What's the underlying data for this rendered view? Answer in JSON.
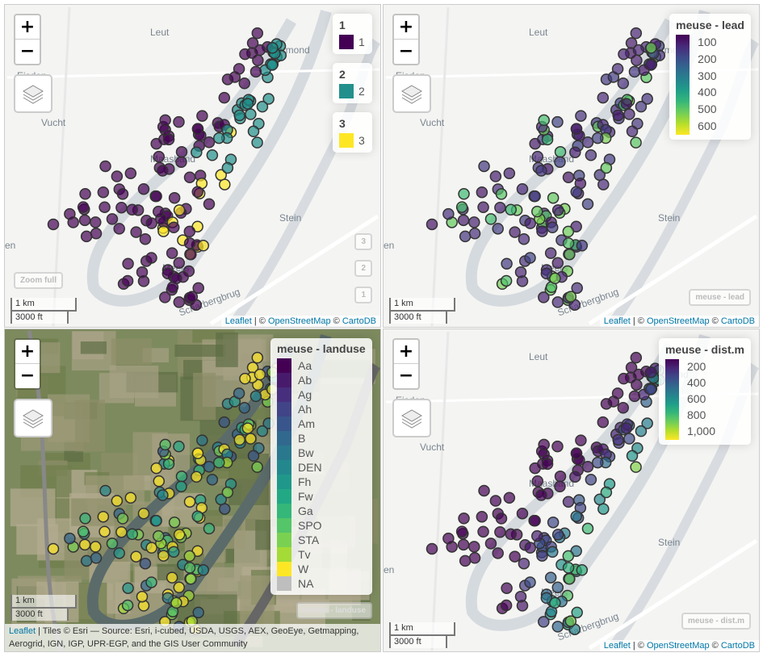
{
  "controls": {
    "zoom_in": "+",
    "zoom_out": "−",
    "layers_icon": "layers-icon"
  },
  "place_labels": [
    "Leut",
    "Urmond",
    "Eisden",
    "Vucht",
    "Maasband",
    "Stein",
    "Meers",
    "Scharbergbrug",
    "en"
  ],
  "scale": {
    "km": "1 km",
    "ft": "3000 ft"
  },
  "attribution_carto": {
    "leaflet": "Leaflet",
    "sep": " | © ",
    "osm": "OpenStreetMap",
    "sep2": " © ",
    "carto": "CartoDB"
  },
  "attribution_esri": {
    "leaflet": "Leaflet",
    "text": " | Tiles © Esri — Source: Esri, i-cubed, USDA, USGS, AEX, GeoEye, Getmapping, Aerogrid, IGN, IGP, UPR-EGP, and the GIS User Community"
  },
  "panel1": {
    "legends": [
      {
        "title": "1",
        "label": "1",
        "color": "#440154"
      },
      {
        "title": "2",
        "label": "2",
        "color": "#21908c"
      },
      {
        "title": "3",
        "label": "3",
        "color": "#fde725"
      }
    ],
    "zoom_full": "Zoom full",
    "layer_buttons": [
      "3",
      "2",
      "1"
    ]
  },
  "panel2": {
    "legend_title": "meuse - lead",
    "ticks": [
      "100",
      "200",
      "300",
      "400",
      "500",
      "600"
    ],
    "tag": "meuse - lead"
  },
  "panel3": {
    "legend_title": "meuse - landuse",
    "categories": [
      "Aa",
      "Ab",
      "Ag",
      "Ah",
      "Am",
      "B",
      "Bw",
      "DEN",
      "Fh",
      "Fw",
      "Ga",
      "SPO",
      "STA",
      "Tv",
      "W",
      "NA"
    ],
    "colors": [
      "#440154",
      "#481a6c",
      "#472f7d",
      "#414487",
      "#39568c",
      "#31688e",
      "#2a788e",
      "#23888e",
      "#1f988b",
      "#22a884",
      "#35b779",
      "#54c568",
      "#7ad151",
      "#a5db36",
      "#fde725",
      "#bebebe"
    ],
    "tag": "meuse - landuse"
  },
  "panel4": {
    "legend_title": "meuse - dist.m",
    "ticks": [
      "200",
      "400",
      "600",
      "800",
      "1,000"
    ],
    "tag": "meuse - dist.m"
  }
}
